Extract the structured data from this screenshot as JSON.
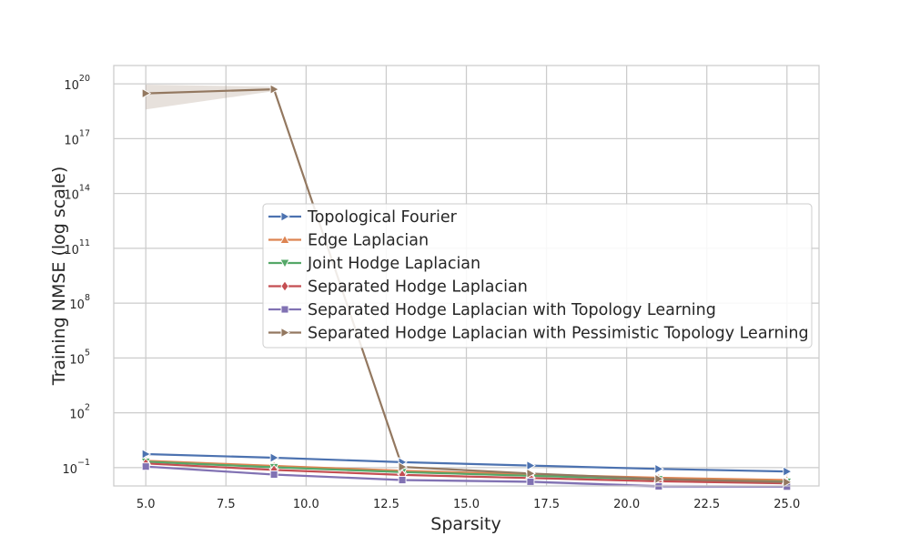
{
  "chart_data": {
    "type": "line",
    "title": "",
    "xlabel": "Sparsity",
    "ylabel": "Training NMSE (log scale)",
    "xlim": [
      4.0,
      26.0
    ],
    "y_scale": "log",
    "ylim_log10": [
      -2.0,
      21.0
    ],
    "x_ticks": [
      "5.0",
      "7.5",
      "10.0",
      "12.5",
      "15.0",
      "17.5",
      "20.0",
      "22.5",
      "25.0"
    ],
    "y_ticks": [
      {
        "base": "10",
        "exp": "20",
        "value_log10": 20
      },
      {
        "base": "10",
        "exp": "17",
        "value_log10": 17
      },
      {
        "base": "10",
        "exp": "14",
        "value_log10": 14
      },
      {
        "base": "10",
        "exp": "11",
        "value_log10": 11
      },
      {
        "base": "10",
        "exp": "8",
        "value_log10": 8
      },
      {
        "base": "10",
        "exp": "5",
        "value_log10": 5
      },
      {
        "base": "10",
        "exp": "2",
        "value_log10": 2
      },
      {
        "base": "10",
        "exp": "−1",
        "value_log10": -1
      }
    ],
    "grid": true,
    "legend_position": "center-right",
    "x": [
      5,
      9,
      13,
      17,
      21,
      25
    ],
    "series": [
      {
        "name": "Topological Fourier",
        "color": "#4c72b0",
        "marker": "triangle-right",
        "values": [
          0.55,
          0.35,
          0.2,
          0.13,
          0.085,
          0.062
        ],
        "band_low": [
          0.5,
          0.32,
          0.18,
          0.12,
          0.078,
          0.057
        ],
        "band_high": [
          0.6,
          0.38,
          0.22,
          0.14,
          0.092,
          0.067
        ]
      },
      {
        "name": "Edge Laplacian",
        "color": "#dd8452",
        "marker": "triangle-up",
        "values": [
          0.24,
          0.125,
          0.068,
          0.043,
          0.028,
          0.021
        ],
        "band_low": [
          0.21,
          0.11,
          0.06,
          0.038,
          0.025,
          0.019
        ],
        "band_high": [
          0.27,
          0.14,
          0.076,
          0.048,
          0.031,
          0.023
        ]
      },
      {
        "name": "Joint Hodge Laplacian",
        "color": "#55a868",
        "marker": "triangle-down",
        "values": [
          0.21,
          0.105,
          0.057,
          0.036,
          0.023,
          0.017
        ],
        "band_low": [
          0.19,
          0.095,
          0.051,
          0.032,
          0.021,
          0.015
        ],
        "band_high": [
          0.23,
          0.115,
          0.063,
          0.04,
          0.025,
          0.019
        ]
      },
      {
        "name": "Separated Hodge Laplacian",
        "color": "#c44e52",
        "marker": "diamond",
        "values": [
          0.17,
          0.075,
          0.04,
          0.027,
          0.018,
          0.014
        ],
        "band_low": [
          0.155,
          0.068,
          0.036,
          0.024,
          0.016,
          0.0125
        ],
        "band_high": [
          0.185,
          0.082,
          0.044,
          0.03,
          0.02,
          0.0155
        ]
      },
      {
        "name": "Separated Hodge Laplacian with Topology Learning",
        "color": "#8172b3",
        "marker": "square",
        "values": [
          0.115,
          0.042,
          0.021,
          0.017,
          0.0095,
          0.0092
        ],
        "band_low": [
          0.1,
          0.037,
          0.018,
          0.014,
          0.0075,
          0.0078
        ],
        "band_high": [
          0.13,
          0.047,
          0.024,
          0.02,
          0.012,
          0.0106
        ]
      },
      {
        "name": "Separated Hodge Laplacian with Pessimistic Topology Learning",
        "color": "#937860",
        "marker": "triangle-right",
        "values": [
          3e+19,
          5e+19,
          0.11,
          0.048,
          0.024,
          0.016
        ],
        "band_low": [
          4e+18,
          4e+19,
          0.1,
          0.043,
          0.021,
          0.014
        ],
        "band_high": [
          9e+19,
          7e+19,
          0.12,
          0.053,
          0.027,
          0.018
        ]
      }
    ]
  }
}
